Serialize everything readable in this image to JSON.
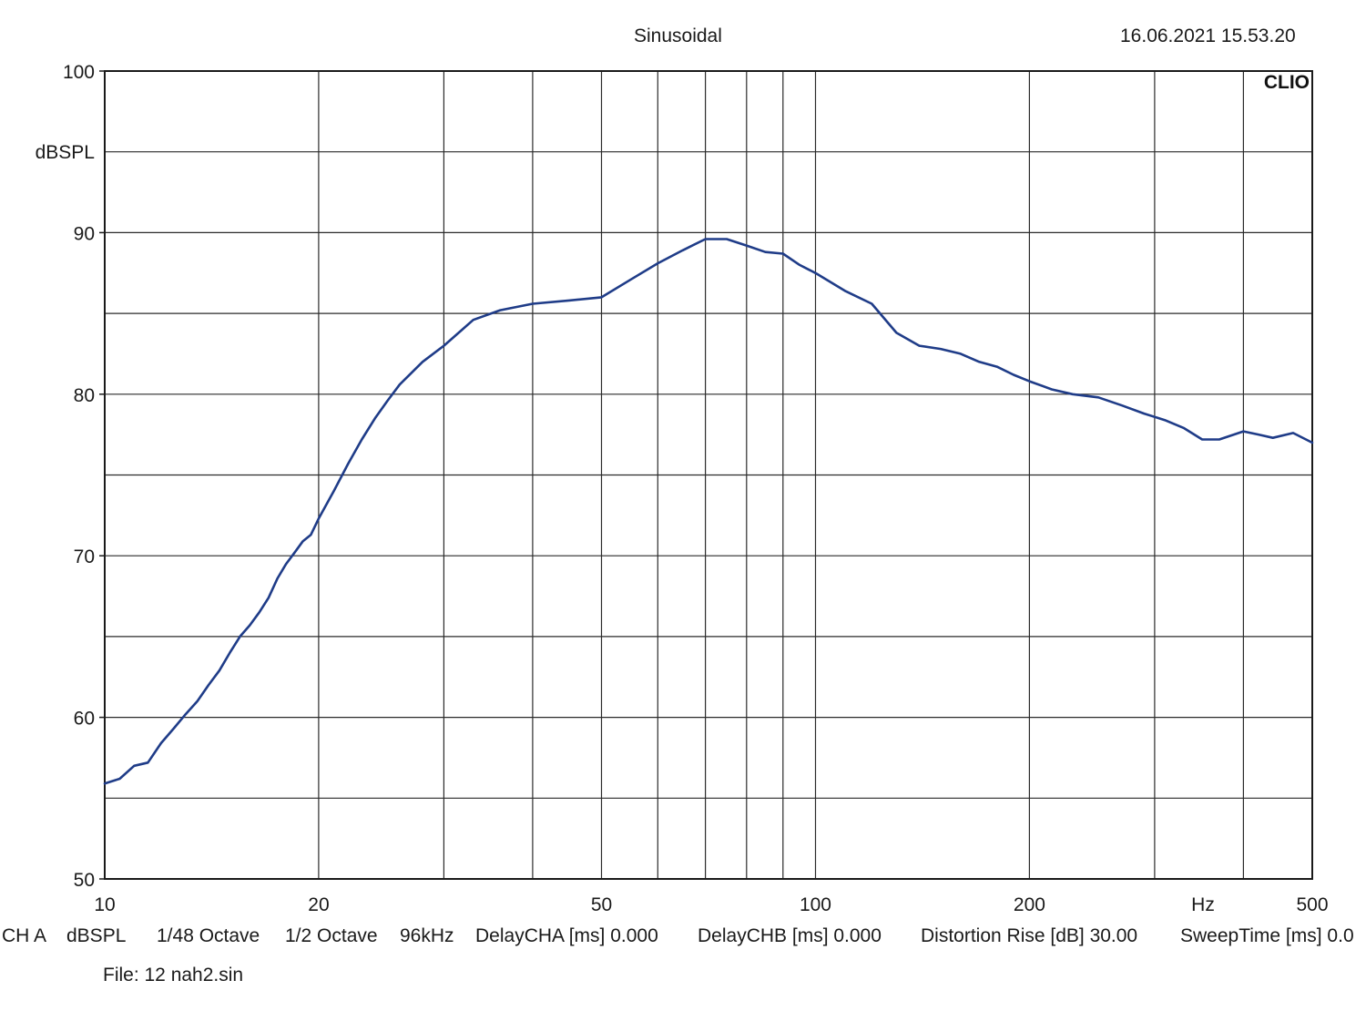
{
  "header": {
    "title": "Sinusoidal",
    "datetime": "16.06.2021 15.53.20",
    "brand": "CLIO"
  },
  "chart_data": {
    "type": "line",
    "title": "Sinusoidal",
    "ylabel": "dBSPL",
    "xlabel": "Hz",
    "x_scale": "log",
    "xlim": [
      10,
      500
    ],
    "ylim": [
      50,
      100
    ],
    "grid": true,
    "x_tick_labels": [
      "10",
      "20",
      "50",
      "100",
      "200",
      "500"
    ],
    "x_tick_values": [
      10,
      20,
      50,
      100,
      200,
      500
    ],
    "x_grid": [
      20,
      30,
      40,
      50,
      60,
      70,
      80,
      90,
      100,
      200,
      300,
      400
    ],
    "y_tick_labels": [
      "50",
      "60",
      "70",
      "80",
      "90",
      "100"
    ],
    "y_tick_values": [
      50,
      60,
      70,
      80,
      90,
      100
    ],
    "y_grid": [
      55,
      60,
      65,
      70,
      75,
      80,
      85,
      90,
      95
    ],
    "series": [
      {
        "color": "#1f3c88",
        "x": [
          10,
          10.5,
          11,
          11.5,
          12,
          12.5,
          13,
          13.5,
          14,
          14.5,
          15,
          15.5,
          16,
          16.5,
          17,
          17.5,
          18,
          18.5,
          19,
          19.5,
          20,
          21,
          22,
          23,
          24,
          25,
          26,
          28,
          30,
          33,
          36,
          40,
          45,
          50,
          55,
          60,
          65,
          70,
          75,
          80,
          85,
          90,
          95,
          100,
          110,
          120,
          130,
          140,
          150,
          160,
          170,
          180,
          190,
          200,
          215,
          230,
          250,
          270,
          290,
          310,
          330,
          350,
          370,
          400,
          420,
          440,
          470,
          500
        ],
        "y": [
          55.9,
          56.2,
          57.0,
          57.2,
          58.4,
          59.3,
          60.2,
          61.0,
          62.0,
          62.9,
          64.0,
          65.0,
          65.7,
          66.5,
          67.4,
          68.6,
          69.5,
          70.2,
          70.9,
          71.3,
          72.3,
          74.0,
          75.7,
          77.2,
          78.5,
          79.6,
          80.6,
          82.0,
          83.0,
          84.6,
          85.2,
          85.6,
          85.8,
          86.0,
          87.1,
          88.1,
          88.9,
          89.6,
          89.6,
          89.2,
          88.8,
          88.7,
          88.0,
          87.5,
          86.4,
          85.6,
          83.8,
          83.0,
          82.8,
          82.5,
          82.0,
          81.7,
          81.2,
          80.8,
          80.3,
          80.0,
          79.8,
          79.3,
          78.8,
          78.4,
          77.9,
          77.2,
          77.2,
          77.7,
          77.5,
          77.3,
          77.6,
          77.0
        ]
      }
    ]
  },
  "footer": {
    "items": [
      "CH A",
      "dBSPL",
      "1/48 Octave",
      "1/2 Octave",
      "96kHz",
      "DelayCHA [ms] 0.000",
      "DelayCHB [ms] 0.000",
      "Distortion Rise [dB] 30.00",
      "SweepTime [ms] 0.0"
    ],
    "file": "File: 12 nah2.sin"
  }
}
